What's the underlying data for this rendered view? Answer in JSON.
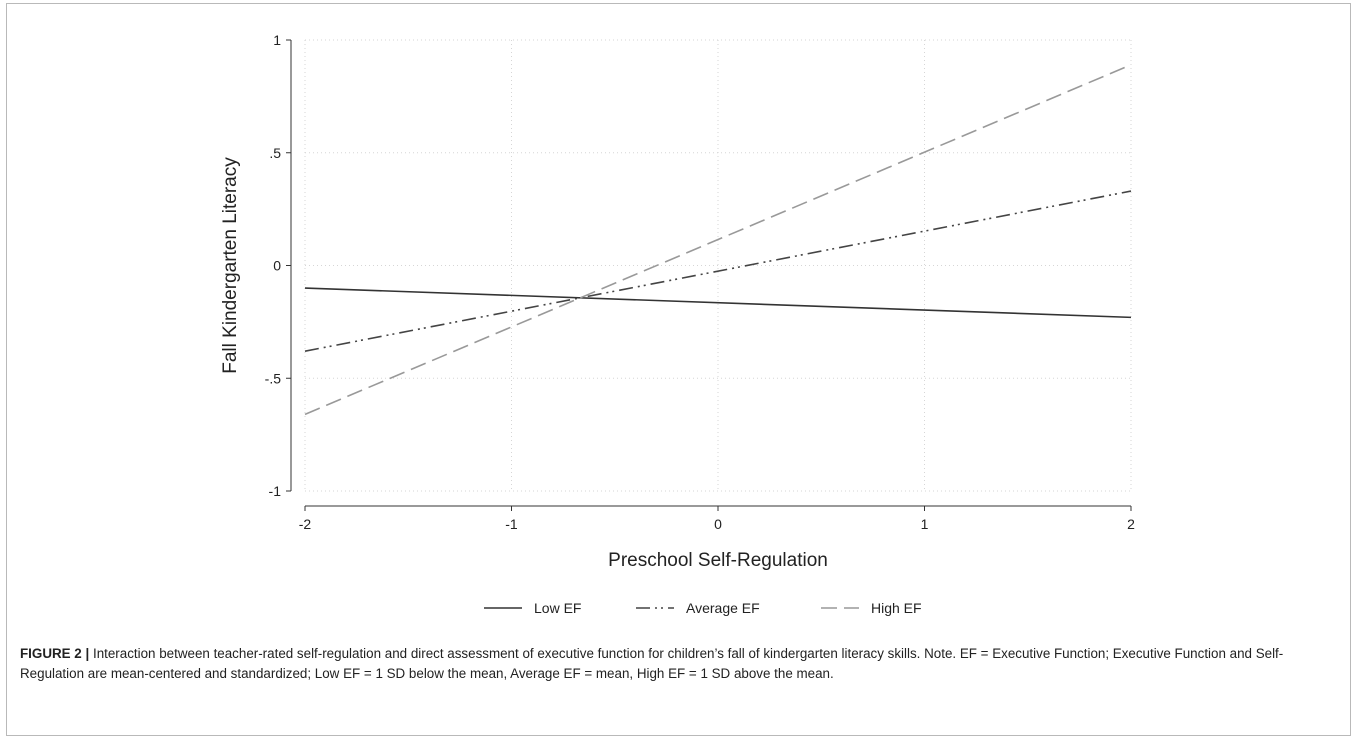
{
  "chart_data": {
    "type": "line",
    "xlabel": "Preschool Self-Regulation",
    "ylabel": "Fall Kindergarten Literacy",
    "xlim": [
      -2,
      2
    ],
    "ylim": [
      -1,
      1
    ],
    "x_ticks": [
      "-2",
      "-1",
      "0",
      "1",
      "2"
    ],
    "y_ticks": [
      "-1",
      "-.5",
      "0",
      ".5",
      "1"
    ],
    "grid": true,
    "legend_position": "bottom",
    "series": [
      {
        "name": "Low EF",
        "x": [
          -2,
          2
        ],
        "y": [
          -0.1,
          -0.23
        ],
        "color": "#333333",
        "dash": "solid"
      },
      {
        "name": "Average EF",
        "x": [
          -2,
          2
        ],
        "y": [
          -0.38,
          0.33
        ],
        "color": "#444444",
        "dash": "dash-dot-dot"
      },
      {
        "name": "High EF",
        "x": [
          -2,
          2
        ],
        "y": [
          -0.66,
          0.89
        ],
        "color": "#999999",
        "dash": "dashed"
      }
    ]
  },
  "caption": {
    "label": "FIGURE 2 |",
    "text": "Interaction between teacher-rated self-regulation and direct assessment of executive function for children’s fall of kindergarten literacy skills. Note. EF = Executive Function; Executive Function and Self-Regulation are mean-centered and standardized; Low EF = 1 SD below the mean, Average EF = mean, High EF = 1 SD above the mean."
  }
}
